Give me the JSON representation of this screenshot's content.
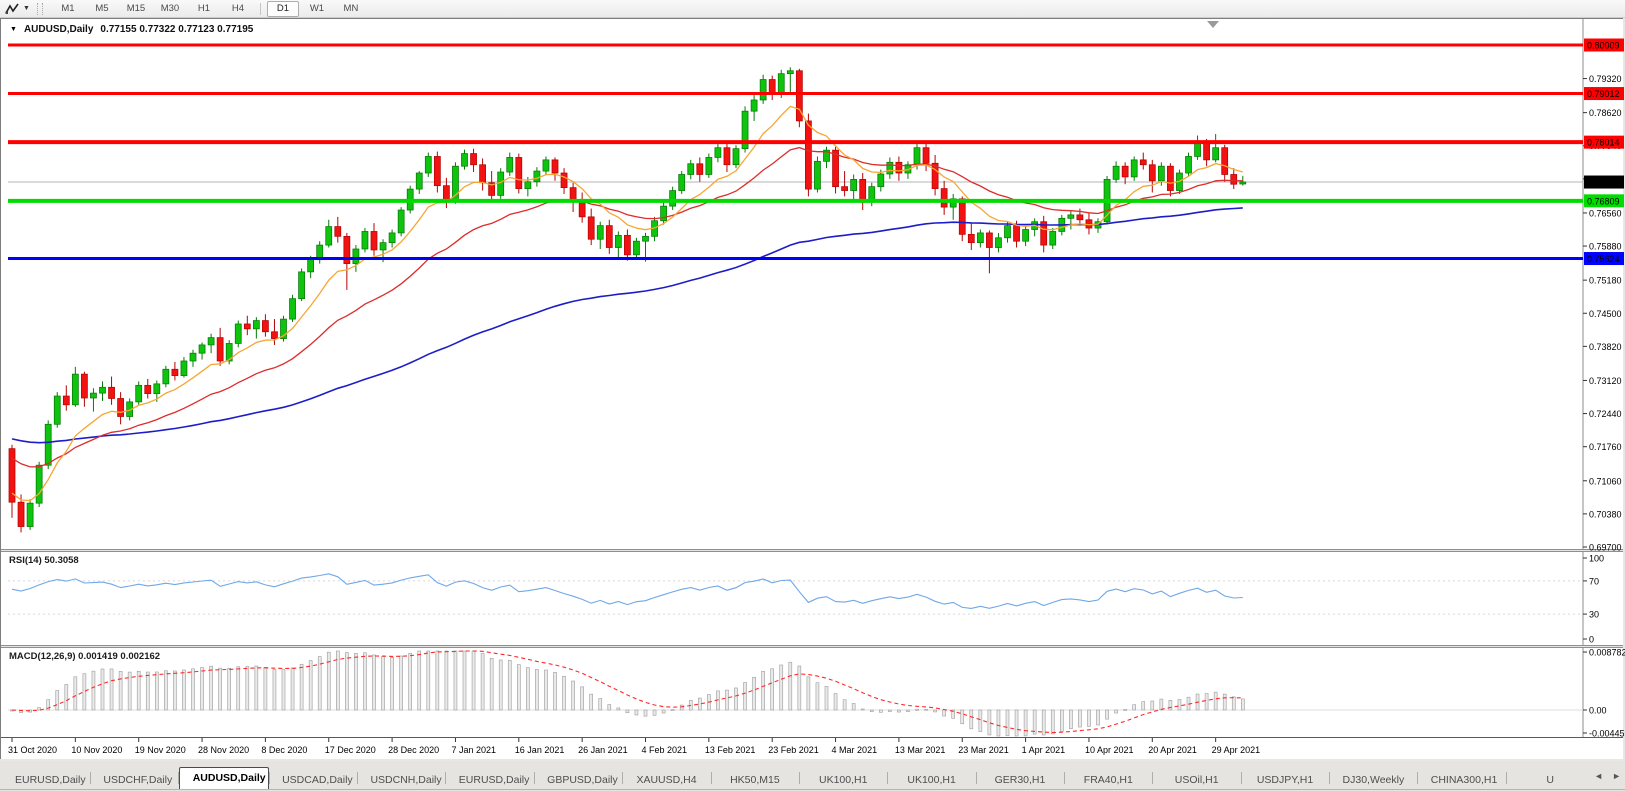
{
  "toolbar": {
    "timeframes": [
      "M1",
      "M5",
      "M15",
      "M30",
      "H1",
      "H4",
      "D1",
      "W1",
      "MN"
    ],
    "active_timeframe": "D1",
    "pattern_tool_icon": "zigzag-icon",
    "dropdown_icon": "▼"
  },
  "chart": {
    "title_symbol": "AUDUSD,Daily",
    "title_ohlc": "0.77155 0.77322 0.77123 0.77195",
    "menu_icon": "▼",
    "current_price_label": "0.77195",
    "colors": {
      "bull": "#0ec40e",
      "bull_border": "#067a06",
      "bear": "#f21212",
      "bear_border": "#b30404",
      "ma_fast": "#f7a634",
      "ma_mid": "#dd2c2c",
      "ma_slow": "#1d1dc8",
      "line_red": "#ff0000",
      "line_green": "#00dc00",
      "line_blue": "#0000ff",
      "price_line": "#b4b4b4",
      "price_badge": "#000000",
      "rsi_line": "#6fa8e8",
      "macd_hist_fill": "#e9e9e9",
      "macd_hist_border": "#9c9c9c",
      "macd_signal": "#ff2a2a"
    }
  },
  "rsi": {
    "label": "RSI(14) 50.3058"
  },
  "macd": {
    "label": "MACD(12,26,9) 0.001419 0.002162"
  },
  "chart_data": [
    {
      "type": "candlestick",
      "name": "AUDUSD Daily price chart",
      "x_labels": [
        "31 Oct 2020",
        "10 Nov 2020",
        "19 Nov 2020",
        "28 Nov 2020",
        "8 Dec 2020",
        "17 Dec 2020",
        "28 Dec 2020",
        "7 Jan 2021",
        "16 Jan 2021",
        "26 Jan 2021",
        "4 Feb 2021",
        "13 Feb 2021",
        "23 Feb 2021",
        "4 Mar 2021",
        "13 Mar 2021",
        "23 Mar 2021",
        "1 Apr 2021",
        "10 Apr 2021",
        "20 Apr 2021",
        "29 Apr 2021"
      ],
      "bars_per_label": 7,
      "ylim": [
        0.6968,
        0.8054
      ],
      "y_ticks": [
        "0.79320",
        "0.78620",
        "0.77940",
        "0.77260",
        "0.76560",
        "0.75880",
        "0.75180",
        "0.74500",
        "0.73820",
        "0.73120",
        "0.72440",
        "0.71760",
        "0.71060",
        "0.70380",
        "0.69700"
      ],
      "horizontal_lines": [
        {
          "price": 0.80009,
          "label": "0.80009",
          "color": "#ff0000",
          "width": 3
        },
        {
          "price": 0.79012,
          "label": "0.79012",
          "color": "#ff0000",
          "width": 3
        },
        {
          "price": 0.78014,
          "label": "0.78014",
          "color": "#ff0000",
          "width": 4
        },
        {
          "price": 0.76809,
          "label": "0.76809",
          "color": "#00dc00",
          "width": 4
        },
        {
          "price": 0.75624,
          "label": "0.75624",
          "color": "#0000ff",
          "width": 3
        }
      ],
      "last_price": 0.77195,
      "ohlc": [
        [
          0.7172,
          0.718,
          0.703,
          0.7062
        ],
        [
          0.7062,
          0.7078,
          0.7,
          0.7012
        ],
        [
          0.7012,
          0.7068,
          0.7005,
          0.706
        ],
        [
          0.706,
          0.7145,
          0.7052,
          0.7138
        ],
        [
          0.7138,
          0.723,
          0.713,
          0.7222
        ],
        [
          0.7222,
          0.7288,
          0.7215,
          0.728
        ],
        [
          0.728,
          0.7302,
          0.725,
          0.7262
        ],
        [
          0.7262,
          0.734,
          0.7258,
          0.7325
        ],
        [
          0.7325,
          0.733,
          0.7258,
          0.7276
        ],
        [
          0.7276,
          0.7296,
          0.7248,
          0.7286
        ],
        [
          0.7286,
          0.731,
          0.727,
          0.7298
        ],
        [
          0.7298,
          0.732,
          0.7262,
          0.7275
        ],
        [
          0.7275,
          0.7288,
          0.7222,
          0.7238
        ],
        [
          0.7238,
          0.7275,
          0.723,
          0.7268
        ],
        [
          0.7268,
          0.731,
          0.7262,
          0.7302
        ],
        [
          0.7302,
          0.7315,
          0.7275,
          0.7285
        ],
        [
          0.7285,
          0.7312,
          0.7268,
          0.7305
        ],
        [
          0.7305,
          0.7342,
          0.7298,
          0.7335
        ],
        [
          0.7335,
          0.735,
          0.7312,
          0.7322
        ],
        [
          0.7322,
          0.736,
          0.7318,
          0.7352
        ],
        [
          0.7352,
          0.7375,
          0.734,
          0.7368
        ],
        [
          0.7368,
          0.739,
          0.7355,
          0.7385
        ],
        [
          0.7385,
          0.7408,
          0.7368,
          0.74
        ],
        [
          0.74,
          0.742,
          0.7342,
          0.7352
        ],
        [
          0.7352,
          0.7395,
          0.7345,
          0.7388
        ],
        [
          0.7388,
          0.7435,
          0.738,
          0.7428
        ],
        [
          0.7428,
          0.7445,
          0.7405,
          0.7418
        ],
        [
          0.7418,
          0.7442,
          0.7398,
          0.7435
        ],
        [
          0.7435,
          0.7448,
          0.7402,
          0.7412
        ],
        [
          0.7412,
          0.7438,
          0.7385,
          0.7398
        ],
        [
          0.7398,
          0.7445,
          0.7392,
          0.7438
        ],
        [
          0.7438,
          0.7488,
          0.7432,
          0.748
        ],
        [
          0.748,
          0.7542,
          0.7475,
          0.7535
        ],
        [
          0.7535,
          0.7568,
          0.7522,
          0.756
        ],
        [
          0.756,
          0.7598,
          0.7552,
          0.759
        ],
        [
          0.759,
          0.7642,
          0.7585,
          0.7628
        ],
        [
          0.7628,
          0.7648,
          0.7595,
          0.7608
        ],
        [
          0.7608,
          0.7615,
          0.7498,
          0.7552
        ],
        [
          0.7552,
          0.759,
          0.7535,
          0.7582
        ],
        [
          0.7582,
          0.7625,
          0.7575,
          0.7618
        ],
        [
          0.7618,
          0.7635,
          0.7568,
          0.758
        ],
        [
          0.758,
          0.7602,
          0.7555,
          0.7595
        ],
        [
          0.7595,
          0.7622,
          0.7585,
          0.7615
        ],
        [
          0.7615,
          0.7668,
          0.7608,
          0.7662
        ],
        [
          0.7662,
          0.7712,
          0.7655,
          0.7705
        ],
        [
          0.7705,
          0.7742,
          0.7695,
          0.7738
        ],
        [
          0.7738,
          0.778,
          0.773,
          0.7772
        ],
        [
          0.7772,
          0.7782,
          0.7698,
          0.7712
        ],
        [
          0.7712,
          0.7728,
          0.7666,
          0.7682
        ],
        [
          0.7682,
          0.776,
          0.7675,
          0.7752
        ],
        [
          0.7752,
          0.7786,
          0.7745,
          0.7778
        ],
        [
          0.7778,
          0.7788,
          0.774,
          0.7755
        ],
        [
          0.7755,
          0.7768,
          0.7702,
          0.7718
        ],
        [
          0.7718,
          0.7742,
          0.7678,
          0.7692
        ],
        [
          0.7692,
          0.7748,
          0.7685,
          0.774
        ],
        [
          0.774,
          0.778,
          0.7732,
          0.777
        ],
        [
          0.777,
          0.7778,
          0.7696,
          0.7706
        ],
        [
          0.7706,
          0.773,
          0.769,
          0.772
        ],
        [
          0.772,
          0.775,
          0.771,
          0.7742
        ],
        [
          0.7742,
          0.7772,
          0.7735,
          0.7765
        ],
        [
          0.7765,
          0.777,
          0.7722,
          0.7738
        ],
        [
          0.7738,
          0.7748,
          0.7695,
          0.7708
        ],
        [
          0.7708,
          0.7718,
          0.7658,
          0.7682
        ],
        [
          0.7682,
          0.7698,
          0.7636,
          0.7648
        ],
        [
          0.7648,
          0.7665,
          0.759,
          0.7602
        ],
        [
          0.7602,
          0.7638,
          0.7582,
          0.763
        ],
        [
          0.763,
          0.7642,
          0.7572,
          0.7585
        ],
        [
          0.7585,
          0.7618,
          0.7562,
          0.761
        ],
        [
          0.761,
          0.7622,
          0.7558,
          0.757
        ],
        [
          0.757,
          0.7605,
          0.756,
          0.7598
        ],
        [
          0.7598,
          0.7615,
          0.7556,
          0.7608
        ],
        [
          0.7608,
          0.7648,
          0.7598,
          0.764
        ],
        [
          0.764,
          0.7678,
          0.7632,
          0.767
        ],
        [
          0.767,
          0.771,
          0.7662,
          0.7702
        ],
        [
          0.7702,
          0.7742,
          0.7695,
          0.7735
        ],
        [
          0.7735,
          0.7765,
          0.7725,
          0.7757
        ],
        [
          0.7757,
          0.777,
          0.772,
          0.7735
        ],
        [
          0.7735,
          0.7778,
          0.7728,
          0.777
        ],
        [
          0.777,
          0.7798,
          0.776,
          0.779
        ],
        [
          0.779,
          0.7802,
          0.774,
          0.7755
        ],
        [
          0.7755,
          0.7795,
          0.7748,
          0.7788
        ],
        [
          0.7788,
          0.7875,
          0.778,
          0.7865
        ],
        [
          0.7865,
          0.7898,
          0.7845,
          0.7888
        ],
        [
          0.7888,
          0.794,
          0.788,
          0.793
        ],
        [
          0.793,
          0.7938,
          0.7888,
          0.79
        ],
        [
          0.79,
          0.795,
          0.7892,
          0.7942
        ],
        [
          0.7942,
          0.7955,
          0.7902,
          0.7948
        ],
        [
          0.7948,
          0.7952,
          0.7832,
          0.7845
        ],
        [
          0.7845,
          0.786,
          0.769,
          0.7705
        ],
        [
          0.7705,
          0.7772,
          0.7698,
          0.7762
        ],
        [
          0.7762,
          0.7792,
          0.7748,
          0.7785
        ],
        [
          0.7785,
          0.7792,
          0.7696,
          0.771
        ],
        [
          0.771,
          0.7742,
          0.769,
          0.7702
        ],
        [
          0.7702,
          0.7735,
          0.7682,
          0.7725
        ],
        [
          0.7725,
          0.7738,
          0.7662,
          0.7678
        ],
        [
          0.7678,
          0.7718,
          0.767,
          0.771
        ],
        [
          0.771,
          0.7745,
          0.77,
          0.7736
        ],
        [
          0.7736,
          0.777,
          0.7726,
          0.776
        ],
        [
          0.776,
          0.7772,
          0.7722,
          0.7738
        ],
        [
          0.7738,
          0.7762,
          0.7726,
          0.7755
        ],
        [
          0.7755,
          0.78,
          0.7745,
          0.779
        ],
        [
          0.779,
          0.78,
          0.7742,
          0.7758
        ],
        [
          0.7758,
          0.7775,
          0.7692,
          0.7706
        ],
        [
          0.7706,
          0.7722,
          0.7652,
          0.7668
        ],
        [
          0.7668,
          0.7695,
          0.7642,
          0.7685
        ],
        [
          0.7685,
          0.769,
          0.7598,
          0.7612
        ],
        [
          0.7612,
          0.7635,
          0.758,
          0.7595
        ],
        [
          0.7595,
          0.7622,
          0.7585,
          0.7615
        ],
        [
          0.7615,
          0.762,
          0.7532,
          0.7585
        ],
        [
          0.7585,
          0.7615,
          0.7575,
          0.7605
        ],
        [
          0.7605,
          0.7638,
          0.7595,
          0.763
        ],
        [
          0.763,
          0.764,
          0.7585,
          0.7598
        ],
        [
          0.7598,
          0.763,
          0.7588,
          0.7622
        ],
        [
          0.7622,
          0.7645,
          0.7608,
          0.7638
        ],
        [
          0.7638,
          0.765,
          0.7575,
          0.759
        ],
        [
          0.759,
          0.7625,
          0.7582,
          0.7618
        ],
        [
          0.7618,
          0.7652,
          0.761,
          0.7645
        ],
        [
          0.7645,
          0.766,
          0.7622,
          0.7652
        ],
        [
          0.7652,
          0.7665,
          0.763,
          0.7642
        ],
        [
          0.7642,
          0.7655,
          0.7612,
          0.7625
        ],
        [
          0.7625,
          0.7645,
          0.7615,
          0.7638
        ],
        [
          0.7638,
          0.7732,
          0.7632,
          0.7725
        ],
        [
          0.7725,
          0.7762,
          0.7718,
          0.7752
        ],
        [
          0.7752,
          0.776,
          0.7715,
          0.773
        ],
        [
          0.773,
          0.7772,
          0.7722,
          0.7765
        ],
        [
          0.7765,
          0.778,
          0.7745,
          0.7755
        ],
        [
          0.7755,
          0.7765,
          0.7698,
          0.7722
        ],
        [
          0.7722,
          0.776,
          0.7712,
          0.7752
        ],
        [
          0.7752,
          0.7758,
          0.769,
          0.7702
        ],
        [
          0.7702,
          0.7745,
          0.7695,
          0.7738
        ],
        [
          0.7738,
          0.778,
          0.773,
          0.7772
        ],
        [
          0.7772,
          0.7815,
          0.7765,
          0.78
        ],
        [
          0.78,
          0.7808,
          0.7752,
          0.7765
        ],
        [
          0.7765,
          0.7818,
          0.776,
          0.779
        ],
        [
          0.779,
          0.7796,
          0.772,
          0.7735
        ],
        [
          0.7735,
          0.7748,
          0.7705,
          0.7715
        ],
        [
          0.77155,
          0.77322,
          0.77123,
          0.77195
        ]
      ]
    },
    {
      "type": "line",
      "name": "RSI(14)",
      "label": "RSI(14) 50.3058",
      "last_value": 50.3058,
      "y_ticks": [
        "100",
        "70",
        "30",
        "0"
      ],
      "levels": [
        70,
        30
      ]
    },
    {
      "type": "bar",
      "name": "MACD(12,26,9)",
      "label": "MACD(12,26,9) 0.001419 0.002162",
      "last_values": [
        0.001419,
        0.002162
      ],
      "y_ticks": [
        "0.008782",
        "0.00",
        "-0.004451"
      ]
    }
  ],
  "tabs": {
    "items": [
      "EURUSD,Daily",
      "USDCHF,Daily",
      "AUDUSD,Daily",
      "USDCAD,Daily",
      "USDCNH,Daily",
      "EURUSD,Daily",
      "GBPUSD,Daily",
      "XAUUSD,H4",
      "HK50,M15",
      "UK100,H1",
      "UK100,H1",
      "GER30,H1",
      "FRA40,H1",
      "USOil,H1",
      "USDJPY,H1",
      "DJ30,Weekly",
      "CHINA300,H1",
      "U"
    ],
    "active_index": 2,
    "scroll_left": "◄",
    "scroll_right": "►"
  }
}
